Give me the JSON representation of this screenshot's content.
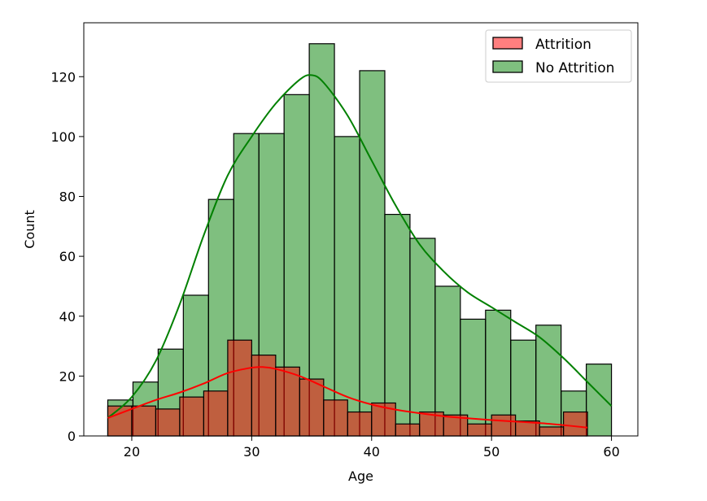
{
  "chart_data": {
    "type": "bar",
    "xlabel": "Age",
    "ylabel": "Count",
    "xlim": [
      16,
      62.2
    ],
    "ylim": [
      0,
      138
    ],
    "x_ticks": [
      20,
      30,
      40,
      50,
      60
    ],
    "y_ticks": [
      0,
      20,
      40,
      60,
      80,
      100,
      120
    ],
    "legend_position": "top-right",
    "bin_width": 2.1,
    "series": [
      {
        "name": "Attrition",
        "color": "#ff0000",
        "bins_start": 18,
        "bin_width": 2.0,
        "counts": [
          10,
          10,
          9,
          13,
          15,
          32,
          27,
          23,
          19,
          12,
          8,
          11,
          4,
          8,
          7,
          4,
          7,
          5,
          3,
          8
        ],
        "kde_x": [
          18,
          20,
          22,
          24,
          26,
          28,
          30,
          31,
          32,
          34,
          36,
          38,
          40,
          42,
          44,
          46,
          48,
          50,
          52,
          54,
          56,
          58
        ],
        "kde_y": [
          6,
          9,
          12,
          14.5,
          17.5,
          21,
          22.8,
          23,
          22.4,
          20,
          16.5,
          13,
          10.5,
          8.8,
          7.6,
          6.6,
          5.9,
          5.3,
          4.8,
          4.3,
          3.6,
          2.8
        ]
      },
      {
        "name": "No Attrition",
        "color": "#008000",
        "bins_start": 18,
        "bin_width": 2.1,
        "counts": [
          12,
          18,
          29,
          47,
          79,
          101,
          101,
          114,
          131,
          100,
          122,
          74,
          66,
          50,
          39,
          42,
          32,
          37,
          15,
          24
        ],
        "kde_x": [
          18,
          20,
          22,
          24,
          26,
          28,
          30,
          32,
          34,
          35,
          36,
          38,
          40,
          42,
          44,
          46,
          48,
          50,
          52,
          54,
          56,
          58,
          60
        ],
        "kde_y": [
          6,
          13,
          25,
          44,
          67,
          87,
          100,
          111,
          119,
          120.5,
          118,
          107,
          92,
          77,
          64,
          55,
          48,
          43,
          38,
          33,
          26,
          18,
          10
        ]
      }
    ]
  }
}
